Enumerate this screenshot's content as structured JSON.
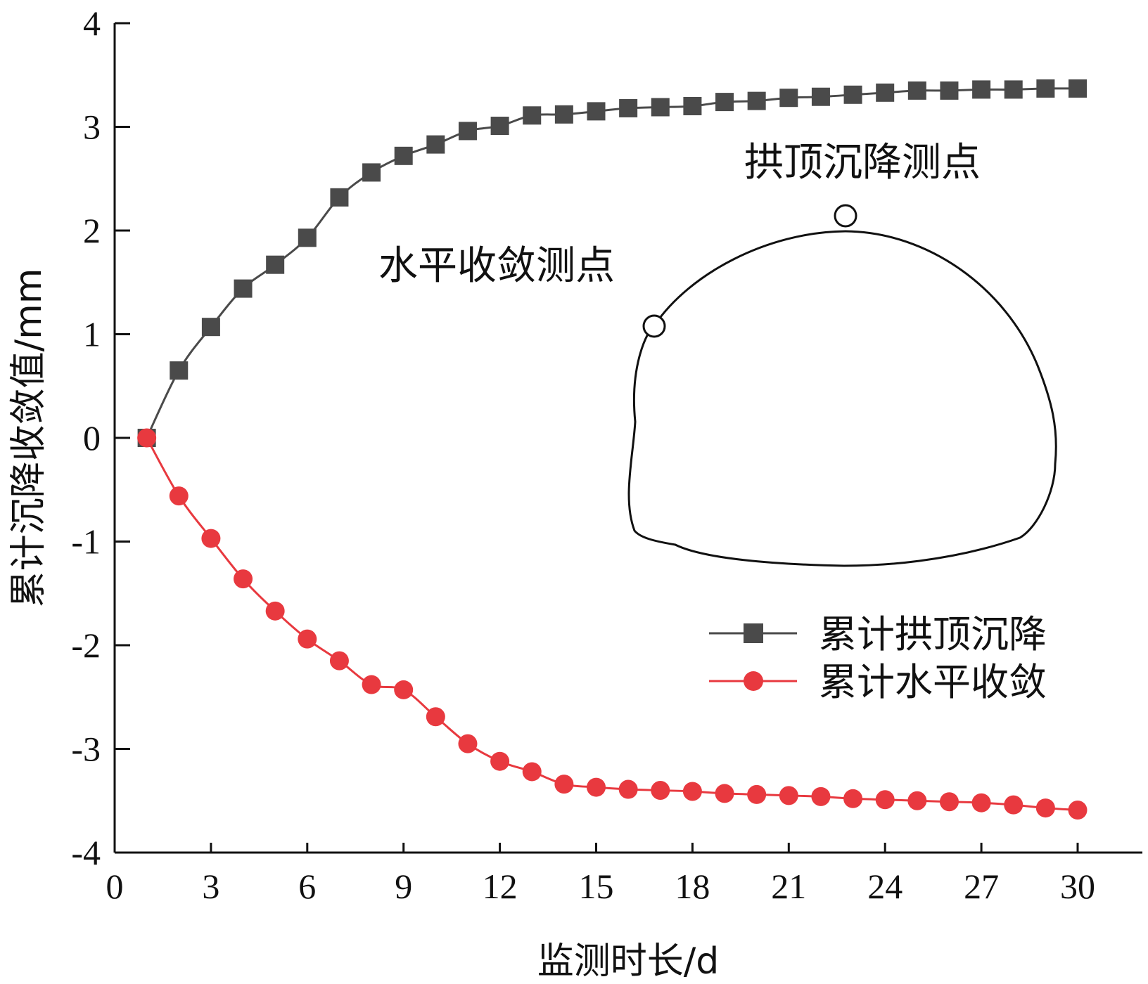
{
  "chart_data": {
    "type": "line",
    "xlabel": "监测时长/d",
    "ylabel": "累计沉降收敛值/mm",
    "xlim": [
      0,
      31
    ],
    "ylim": [
      -4,
      4
    ],
    "x_ticks": [
      0,
      3,
      6,
      9,
      12,
      15,
      18,
      21,
      24,
      27,
      30
    ],
    "y_ticks": [
      -4,
      -3,
      -2,
      -1,
      0,
      1,
      2,
      3,
      4
    ],
    "x_tick_labels": [
      "0",
      "3",
      "6",
      "9",
      "12",
      "15",
      "18",
      "21",
      "24",
      "27",
      "30"
    ],
    "y_tick_labels": [
      "-4",
      "-3",
      "-2",
      "-1",
      "0",
      "1",
      "2",
      "3",
      "4"
    ],
    "grid": false,
    "legend_position": "bottom-right",
    "x": [
      1,
      2,
      3,
      4,
      5,
      6,
      7,
      8,
      9,
      10,
      11,
      12,
      13,
      14,
      15,
      16,
      17,
      18,
      19,
      20,
      21,
      22,
      23,
      24,
      25,
      26,
      27,
      28,
      29,
      30
    ],
    "series": [
      {
        "name": "累计拱顶沉降",
        "color": "#4a4a4a",
        "marker": "square",
        "values": [
          0,
          0.65,
          1.07,
          1.44,
          1.67,
          1.93,
          2.32,
          2.56,
          2.72,
          2.83,
          2.96,
          3.01,
          3.11,
          3.12,
          3.15,
          3.18,
          3.19,
          3.2,
          3.24,
          3.25,
          3.28,
          3.29,
          3.31,
          3.33,
          3.35,
          3.35,
          3.36,
          3.36,
          3.37,
          3.37
        ]
      },
      {
        "name": "累计水平收敛",
        "color": "#e8393f",
        "marker": "circle",
        "values": [
          0,
          -0.56,
          -0.97,
          -1.36,
          -1.67,
          -1.94,
          -2.15,
          -2.38,
          -2.43,
          -2.69,
          -2.95,
          -3.12,
          -3.22,
          -3.34,
          -3.37,
          -3.39,
          -3.4,
          -3.41,
          -3.43,
          -3.44,
          -3.45,
          -3.46,
          -3.48,
          -3.49,
          -3.5,
          -3.51,
          -3.52,
          -3.54,
          -3.57,
          -3.59
        ]
      }
    ],
    "annotations": {
      "crown_label": "拱顶沉降测点",
      "horizontal_label": "水平收敛测点"
    }
  }
}
